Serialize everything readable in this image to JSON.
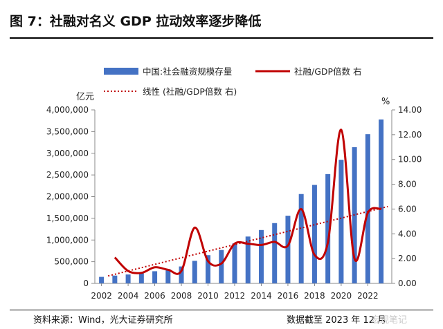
{
  "header": {
    "title": "图 7：社融对名义 GDP 拉动效率逐步降低"
  },
  "footer": {
    "source": "资料来源：Wind，光大证券研究所",
    "date": "数据截至 2023 年 12 月",
    "watermark": "宏观笔记"
  },
  "colors": {
    "bar": "#4472C4",
    "line": "#C00000",
    "trend": "#C00000"
  },
  "chart_data": {
    "type": "bar",
    "x": [
      2002,
      2003,
      2004,
      2005,
      2006,
      2007,
      2008,
      2009,
      2010,
      2011,
      2012,
      2013,
      2014,
      2015,
      2016,
      2017,
      2018,
      2019,
      2020,
      2021,
      2022,
      2023
    ],
    "x_ticks": [
      "2002",
      "2004",
      "2006",
      "2008",
      "2010",
      "2012",
      "2014",
      "2016",
      "2018",
      "2020",
      "2022"
    ],
    "left_unit": "亿元",
    "right_unit": "%",
    "left_ylim": [
      0,
      4000000
    ],
    "right_ylim": [
      0,
      14
    ],
    "left_ticks": [
      "0",
      "500,000",
      "1,000,000",
      "1,500,000",
      "2,000,000",
      "2,500,000",
      "3,000,000",
      "3,500,000",
      "4,000,000"
    ],
    "right_ticks": [
      "0.00",
      "2.00",
      "4.00",
      "6.00",
      "8.00",
      "10.00",
      "12.00",
      "14.00"
    ],
    "legend": {
      "bar": "中国:社会融资规模存量",
      "line": "社融/GDP倍数 右",
      "trend": "线性 (社融/GDP倍数 右)"
    },
    "bars": {
      "name": "中国:社会融资规模存量",
      "axis": "left",
      "values": [
        150000,
        180000,
        205000,
        230000,
        280000,
        330000,
        390000,
        520000,
        650000,
        770000,
        920000,
        1080000,
        1230000,
        1390000,
        1560000,
        2060000,
        2270000,
        2520000,
        2850000,
        3140000,
        3440000,
        3780000
      ]
    },
    "line": {
      "name": "社融/GDP倍数 右",
      "axis": "right",
      "points": [
        [
          2003,
          2.1
        ],
        [
          2004,
          1.0
        ],
        [
          2005,
          0.85
        ],
        [
          2006,
          1.3
        ],
        [
          2007,
          1.1
        ],
        [
          2008,
          1.0
        ],
        [
          2009,
          4.5
        ],
        [
          2010,
          1.8
        ],
        [
          2011,
          1.6
        ],
        [
          2012,
          3.2
        ],
        [
          2013,
          3.2
        ],
        [
          2014,
          3.1
        ],
        [
          2015,
          3.35
        ],
        [
          2016,
          3.05
        ],
        [
          2017,
          6.0
        ],
        [
          2018,
          2.3
        ],
        [
          2019,
          3.3
        ],
        [
          2020,
          12.4
        ],
        [
          2021,
          2.0
        ],
        [
          2022,
          5.7
        ],
        [
          2023,
          6.0
        ]
      ]
    },
    "trend": {
      "name": "线性 (社融/GDP倍数 右)",
      "axis": "right",
      "from": [
        2002.5,
        0.6
      ],
      "to": [
        2023.5,
        6.2
      ]
    }
  }
}
